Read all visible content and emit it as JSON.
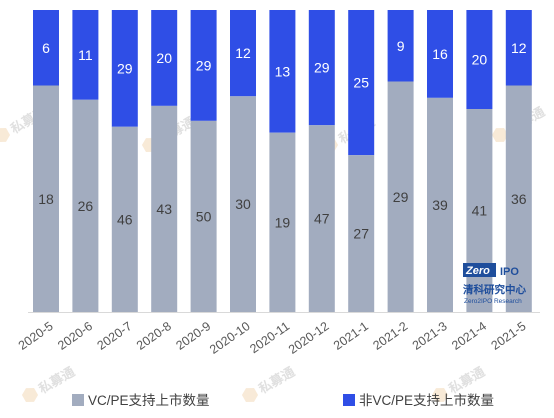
{
  "colors": {
    "series_0": "#a2acbf",
    "series_1": "#2f4ee6",
    "axis": "#d9d9d9"
  },
  "watermark": {
    "text": "私募通",
    "icon": "hexagon-logo-icon"
  },
  "logo": {
    "zero": "Zero",
    "ipo": "IPO",
    "cn": "清科研究中心",
    "en": "Zero2IPO Research"
  },
  "chart_data": {
    "type": "bar",
    "stacked": true,
    "normalized": true,
    "categories": [
      "2020-5",
      "2020-6",
      "2020-7",
      "2020-8",
      "2020-9",
      "2020-10",
      "2020-11",
      "2020-12",
      "2021-1",
      "2021-2",
      "2021-3",
      "2021-4",
      "2021-5"
    ],
    "series": [
      {
        "name": "VC/PE支持上市数量",
        "values": [
          18,
          26,
          46,
          43,
          50,
          30,
          19,
          47,
          27,
          29,
          39,
          41,
          36
        ]
      },
      {
        "name": "非VC/PE支持上市数量",
        "values": [
          6,
          11,
          29,
          20,
          29,
          12,
          13,
          29,
          25,
          9,
          16,
          20,
          12
        ]
      }
    ],
    "title": "",
    "xlabel": "",
    "ylabel": "",
    "legend": "bottom"
  }
}
